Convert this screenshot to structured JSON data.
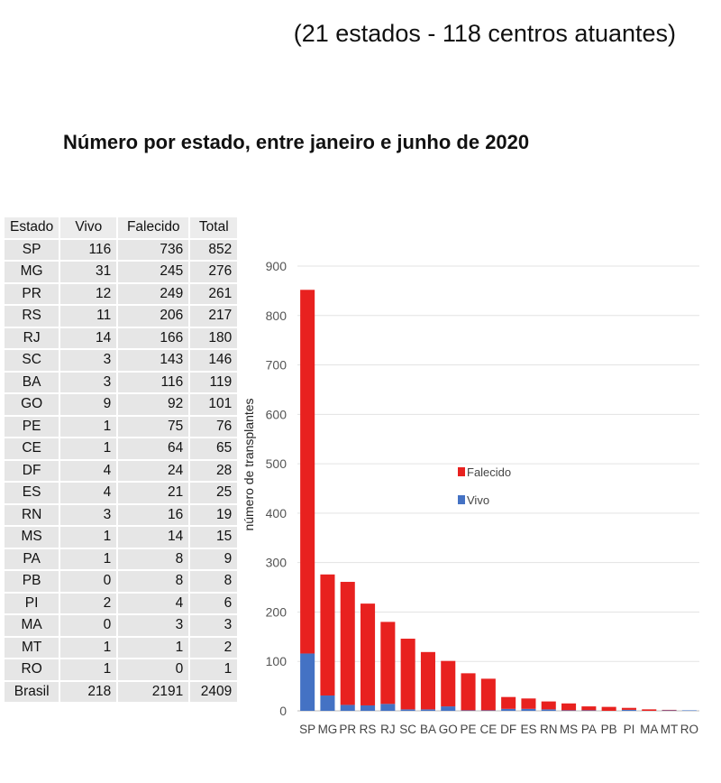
{
  "subtitle": "(21 estados - 118 centros atuantes)",
  "title": "Número por estado, entre janeiro e junho de 2020",
  "table": {
    "headers": [
      "Estado",
      "Vivo",
      "Falecido",
      "Total"
    ],
    "rows": [
      [
        "SP",
        "116",
        "736",
        "852"
      ],
      [
        "MG",
        "31",
        "245",
        "276"
      ],
      [
        "PR",
        "12",
        "249",
        "261"
      ],
      [
        "RS",
        "11",
        "206",
        "217"
      ],
      [
        "RJ",
        "14",
        "166",
        "180"
      ],
      [
        "SC",
        "3",
        "143",
        "146"
      ],
      [
        "BA",
        "3",
        "116",
        "119"
      ],
      [
        "GO",
        "9",
        "92",
        "101"
      ],
      [
        "PE",
        "1",
        "75",
        "76"
      ],
      [
        "CE",
        "1",
        "64",
        "65"
      ],
      [
        "DF",
        "4",
        "24",
        "28"
      ],
      [
        "ES",
        "4",
        "21",
        "25"
      ],
      [
        "RN",
        "3",
        "16",
        "19"
      ],
      [
        "MS",
        "1",
        "14",
        "15"
      ],
      [
        "PA",
        "1",
        "8",
        "9"
      ],
      [
        "PB",
        "0",
        "8",
        "8"
      ],
      [
        "PI",
        "2",
        "4",
        "6"
      ],
      [
        "MA",
        "0",
        "3",
        "3"
      ],
      [
        "MT",
        "1",
        "1",
        "2"
      ],
      [
        "RO",
        "1",
        "0",
        "1"
      ],
      [
        "Brasil",
        "218",
        "2191",
        "2409"
      ]
    ]
  },
  "chart_data": {
    "type": "bar",
    "stacked": true,
    "categories": [
      "SP",
      "MG",
      "PR",
      "RS",
      "RJ",
      "SC",
      "BA",
      "GO",
      "PE",
      "CE",
      "DF",
      "ES",
      "RN",
      "MS",
      "PA",
      "PB",
      "PI",
      "MA",
      "MT",
      "RO"
    ],
    "series": [
      {
        "name": "Vivo",
        "color": "#4472c4",
        "values": [
          116,
          31,
          12,
          11,
          14,
          3,
          3,
          9,
          1,
          1,
          4,
          4,
          3,
          1,
          1,
          0,
          2,
          0,
          1,
          1
        ]
      },
      {
        "name": "Falecido",
        "color": "#e8211f",
        "values": [
          736,
          245,
          249,
          206,
          166,
          143,
          116,
          92,
          75,
          64,
          24,
          21,
          16,
          14,
          8,
          8,
          4,
          3,
          1,
          0
        ]
      }
    ],
    "ylabel": "número de transplantes",
    "xlabel": "",
    "ylim": [
      0,
      900
    ],
    "yticks": [
      0,
      100,
      200,
      300,
      400,
      500,
      600,
      700,
      800,
      900
    ],
    "grid": true,
    "legend_placement": "center-right",
    "legend_order": [
      "Falecido",
      "Vivo"
    ]
  }
}
